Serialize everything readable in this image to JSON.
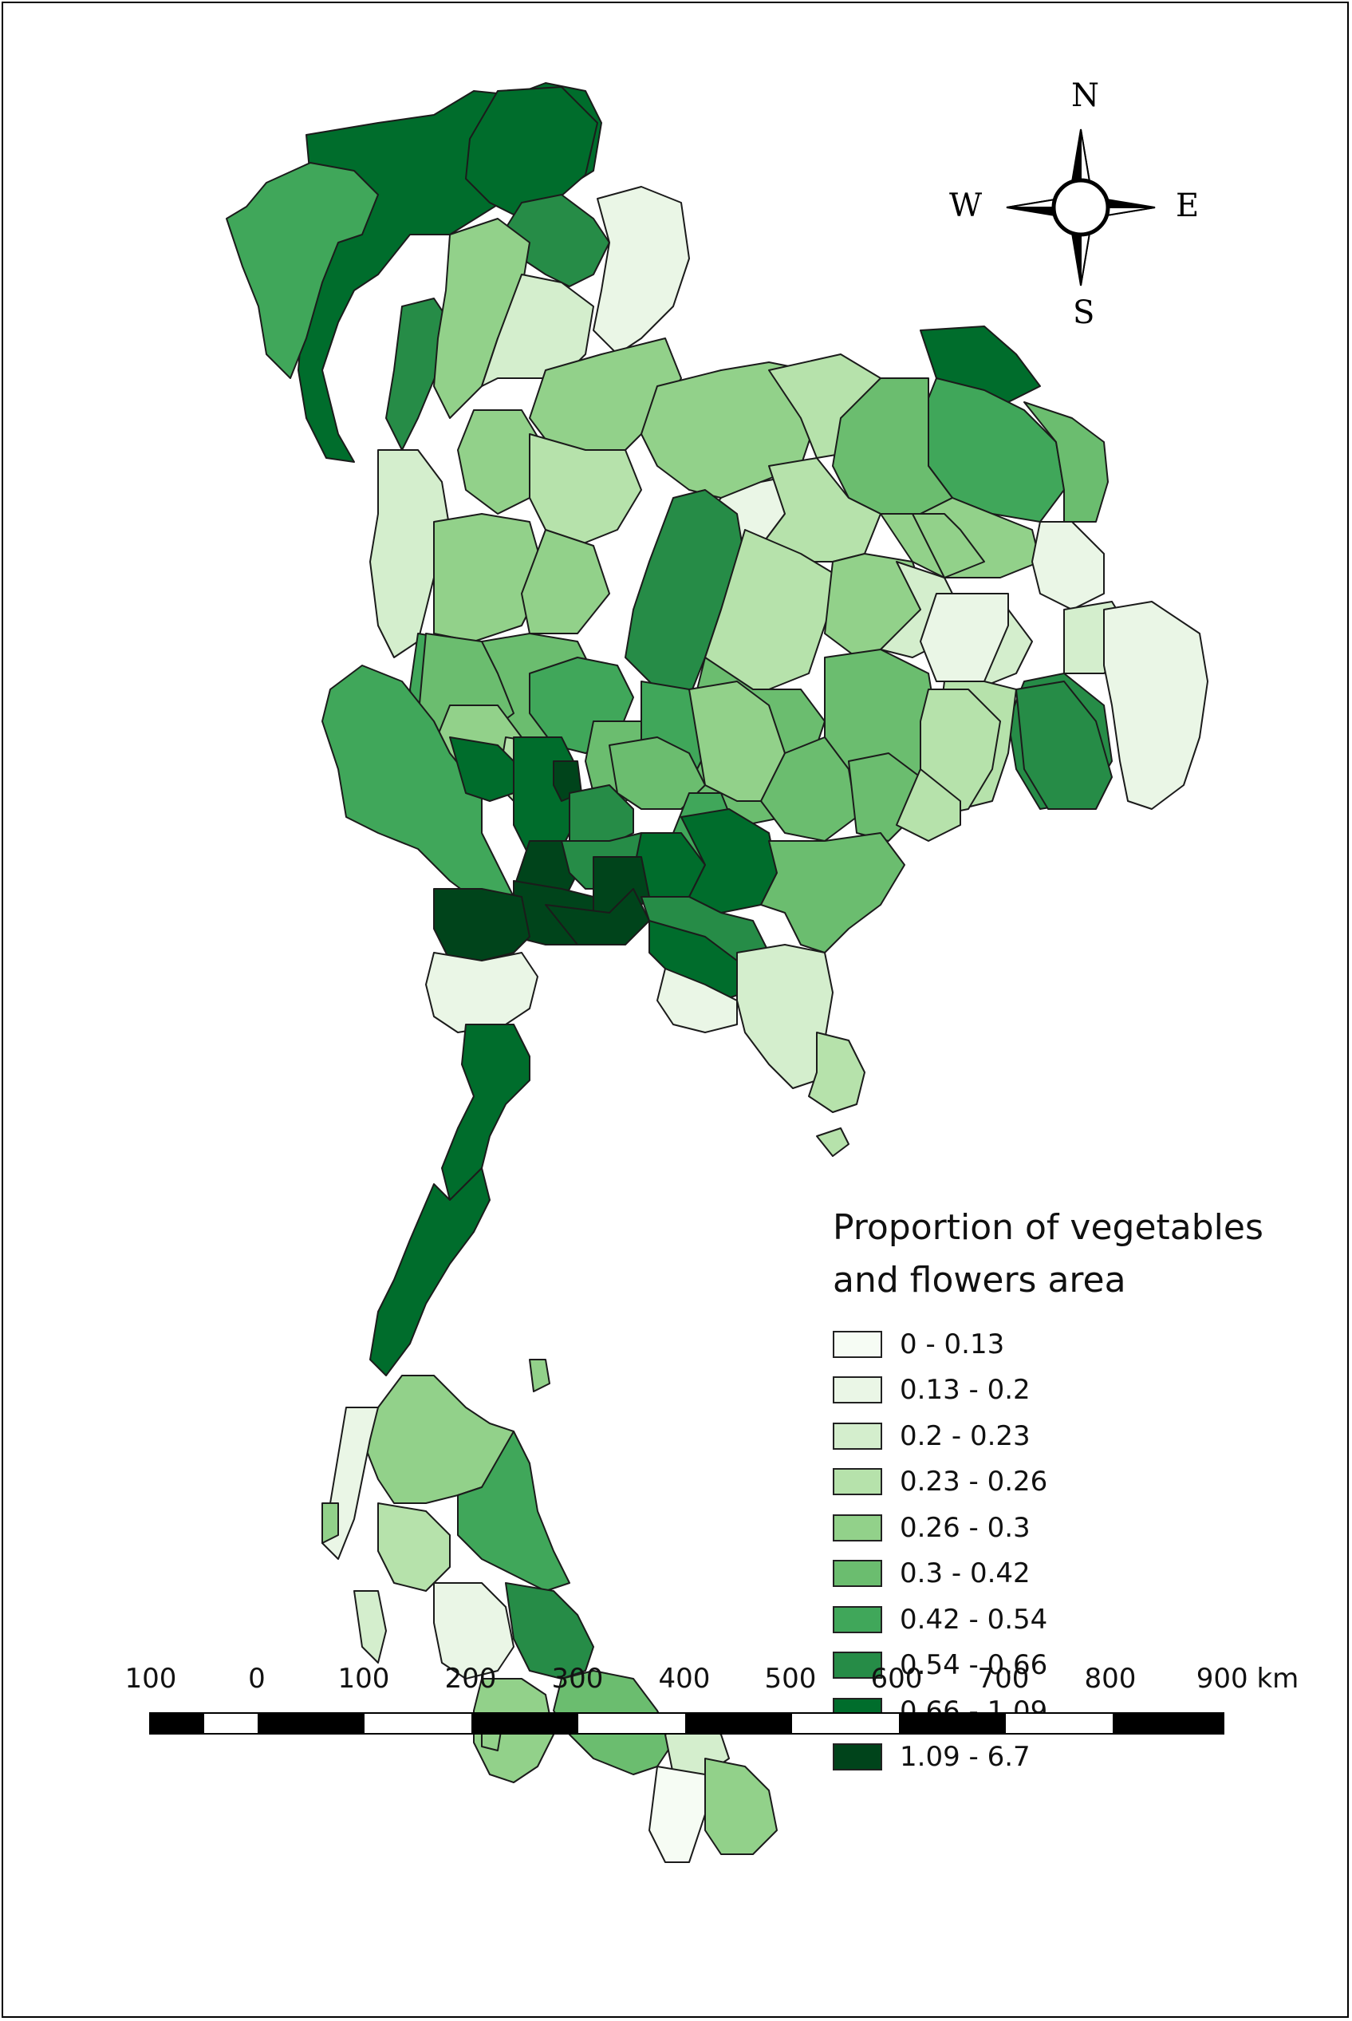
{
  "map": {
    "legend": {
      "title_line1": "Proportion of vegetables",
      "title_line2": "and flowers area",
      "classes": [
        {
          "label": "0 - 0.13",
          "color": "#f6fcf4"
        },
        {
          "label": "0.13 - 0.2",
          "color": "#eaf6e6"
        },
        {
          "label": "0.2 - 0.23",
          "color": "#d4eecd"
        },
        {
          "label": "0.23 - 0.26",
          "color": "#b6e2ab"
        },
        {
          "label": "0.26 - 0.3",
          "color": "#92d18a"
        },
        {
          "label": "0.3 - 0.42",
          "color": "#6bbd6f"
        },
        {
          "label": "0.42 - 0.54",
          "color": "#40a75a"
        },
        {
          "label": "0.54 - 0.66",
          "color": "#268c47"
        },
        {
          "label": "0.66 - 1.09",
          "color": "#006d2c"
        },
        {
          "label": "1.09 - 6.7",
          "color": "#00441b"
        }
      ]
    },
    "compass": {
      "north": "N",
      "south": "S",
      "east": "E",
      "west": "W"
    },
    "scale_bar": {
      "tick_labels": [
        "100",
        "0",
        "100",
        "200",
        "300",
        "400",
        "500",
        "600",
        "700",
        "800",
        "900 km"
      ]
    }
  }
}
